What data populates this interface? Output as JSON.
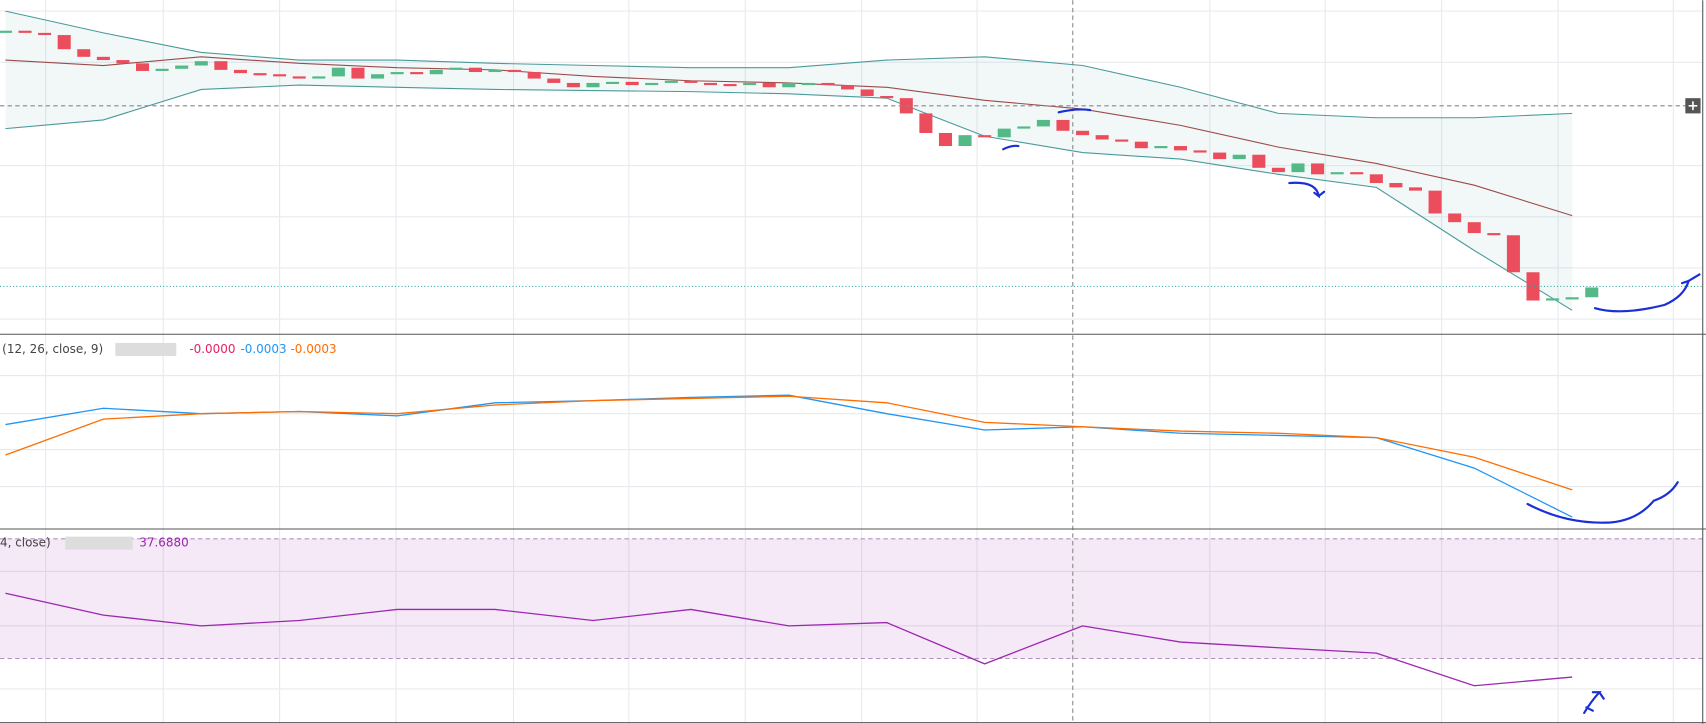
{
  "chart_data": [
    {
      "type": "candlestick",
      "pane": "price",
      "closes": [
        277,
        275,
        273,
        260,
        253,
        250,
        247,
        240,
        242,
        245,
        249,
        241,
        238,
        237,
        235,
        233,
        235,
        243,
        233,
        237,
        239,
        237,
        241,
        243,
        239,
        241,
        239,
        233,
        229,
        225,
        229,
        230,
        227,
        229,
        231,
        229,
        228,
        227,
        229,
        225,
        229,
        229,
        227,
        223,
        217,
        215,
        201,
        183,
        171,
        181,
        179,
        187,
        189,
        195,
        185,
        181,
        177,
        175,
        169,
        171,
        167,
        165,
        159,
        163,
        151,
        147,
        155,
        145,
        147,
        145,
        137,
        133,
        130,
        109,
        101,
        91,
        89,
        55,
        29,
        31,
        32,
        41
      ],
      "up_color": "#53b987",
      "down_color": "#eb4d5c",
      "ylim": [
        0,
        305
      ],
      "band_x": [
        0,
        5,
        10,
        15,
        20,
        25,
        30,
        35,
        40,
        45,
        50,
        55,
        60,
        65,
        70,
        75,
        80
      ],
      "upper": [
        295,
        275,
        257,
        250,
        250,
        247,
        245,
        243,
        243,
        250,
        253,
        245,
        225,
        201,
        197,
        197,
        201
      ],
      "middle": [
        250,
        245,
        253,
        247,
        243,
        241,
        235,
        231,
        229,
        225,
        213,
        205,
        190,
        170,
        155,
        135,
        107
      ],
      "lower": [
        187,
        195,
        223,
        227,
        225,
        223,
        222,
        221,
        219,
        215,
        180,
        165,
        159,
        145,
        133,
        75,
        20
      ],
      "band_color": "#4a9a9a",
      "mid_color": "#9c4a4a"
    },
    {
      "type": "line",
      "pane": "macd",
      "title": "(12, 26, close, 9)",
      "readouts": [
        "-0.0000",
        "-0.0003",
        "-0.0003"
      ],
      "x": [
        0,
        5,
        10,
        15,
        20,
        25,
        30,
        35,
        40,
        45,
        50,
        55,
        60,
        65,
        70,
        75,
        80
      ],
      "series": [
        {
          "color": "#2196f3",
          "values": [
            95,
            110,
            105,
            107,
            103,
            115,
            117,
            120,
            122,
            105,
            90,
            93,
            87,
            85,
            83,
            55,
            10
          ]
        },
        {
          "color": "#ff6d00",
          "values": [
            67,
            100,
            105,
            107,
            105,
            113,
            117,
            119,
            121,
            115,
            97,
            93,
            89,
            87,
            83,
            65,
            35
          ]
        }
      ],
      "ylim": [
        0,
        178
      ]
    },
    {
      "type": "line",
      "pane": "rsi",
      "title": "4, close)",
      "readout": "37.6880",
      "x": [
        0,
        5,
        10,
        15,
        20,
        25,
        30,
        35,
        40,
        45,
        50,
        55,
        60,
        65,
        70,
        75,
        80
      ],
      "series": [
        {
          "color": "#9c27b0",
          "values": [
            51.8,
            44.5,
            40.9,
            42.7,
            46.4,
            46.4,
            42.7,
            46.4,
            40.9,
            42.0,
            28.2,
            40.9,
            35.5,
            33.6,
            31.8,
            20.9,
            23.8
          ]
        }
      ],
      "ylim": [
        8.2,
        72.9
      ],
      "band": [
        30,
        70
      ]
    }
  ]
}
